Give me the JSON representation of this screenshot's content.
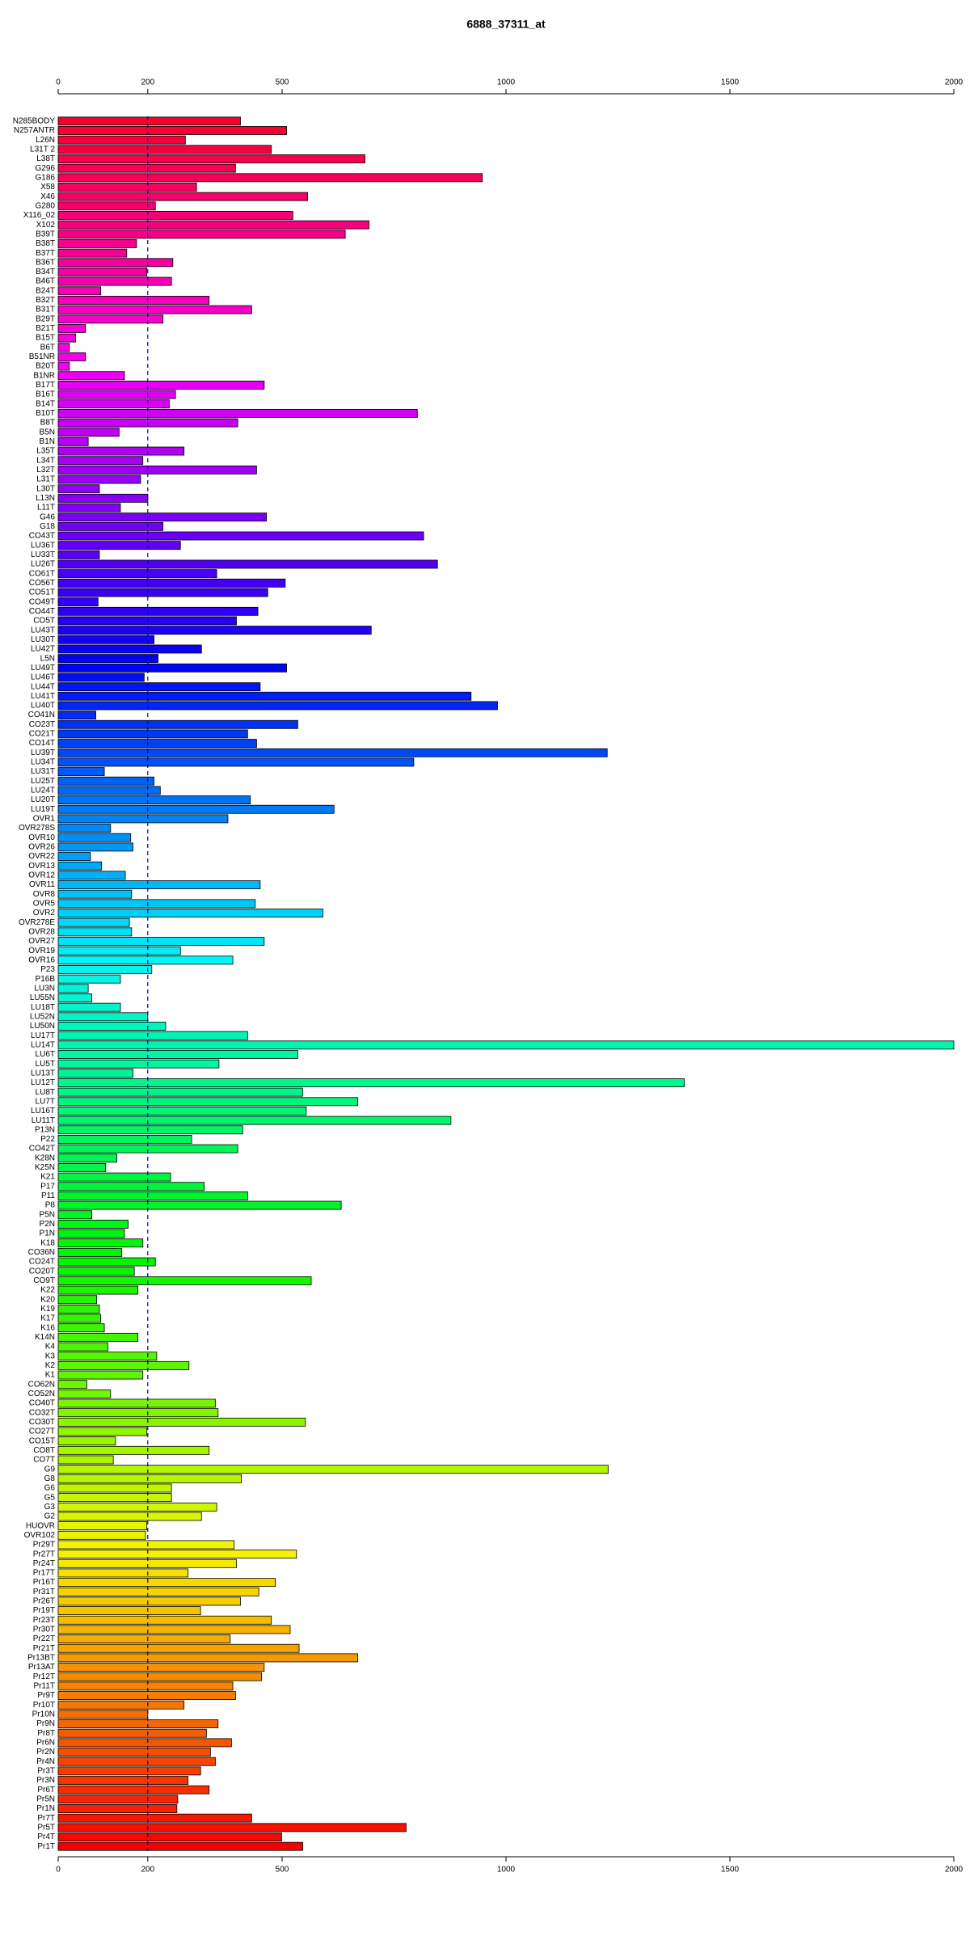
{
  "chart_data": {
    "type": "barh",
    "title": "6888_37311_at",
    "categories": [
      "N285BODY",
      "N257ANTR",
      "L26N",
      "L31T 2",
      "L38T",
      "G296",
      "G186",
      "X58",
      "X46",
      "G280",
      "X116_02",
      "X102",
      "B39T",
      "B38T",
      "B37T",
      "B36T",
      "B34T",
      "B46T",
      "B24T",
      "B32T",
      "B31T",
      "B29T",
      "B21T",
      "B15T",
      "B6T",
      "B51NR",
      "B20T",
      "B1NR",
      "B17T",
      "B16T",
      "B14T",
      "B10T",
      "B8T",
      "B5N",
      "B1N",
      "L35T",
      "L34T",
      "L32T",
      "L31T",
      "L30T",
      "L13N",
      "L11T",
      "G46",
      "G18",
      "CO43T",
      "LU36T",
      "LU33T",
      "LU26T",
      "CO61T",
      "CO56T",
      "CO51T",
      "CO49T",
      "CO44T",
      "CO5T",
      "LU43T",
      "LU30T",
      "LU42T",
      "L5N",
      "LU49T",
      "LU46T",
      "LU44T",
      "LU41T",
      "LU40T",
      "CO41N",
      "CO23T",
      "CO21T",
      "CO14T",
      "LU39T",
      "LU34T",
      "LU31T",
      "LU25T",
      "LU24T",
      "LU20T",
      "LU19T",
      "OVR1",
      "OVR278S",
      "OVR10",
      "OVR26",
      "OVR22",
      "OVR13",
      "OVR12",
      "OVR11",
      "OVR8",
      "OVR5",
      "OVR2",
      "OVR278E",
      "OVR28",
      "OVR27",
      "OVR19",
      "OVR16",
      "P23",
      "P16B",
      "LU3N",
      "LU55N",
      "LU18T",
      "LU52N",
      "LU50N",
      "LU17T",
      "LU14T",
      "LU6T",
      "LU5T",
      "LU13T",
      "LU12T",
      "LU8T",
      "LU7T",
      "LU16T",
      "LU11T",
      "P13N",
      "P22",
      "CO42T",
      "K28N",
      "K25N",
      "K21",
      "P17",
      "P11",
      "P8",
      "P5N",
      "P2N",
      "P1N",
      "K18",
      "CO36N",
      "CO24T",
      "CO20T",
      "CO9T",
      "K22",
      "K20",
      "K19",
      "K17",
      "K16",
      "K14N",
      "K4",
      "K3",
      "K2",
      "K1",
      "CO62N",
      "CO52N",
      "CO40T",
      "CO32T",
      "CO30T",
      "CO27T",
      "CO15T",
      "CO8T",
      "CO7T",
      "G9",
      "G8",
      "G6",
      "G5",
      "G3",
      "G2",
      "HUOVR",
      "OVR102",
      "Pr29T",
      "Pr27T",
      "Pr24T",
      "Pr17T",
      "Pr16T",
      "Pr31T",
      "Pr26T",
      "Pr19T",
      "Pr23T",
      "Pr30T",
      "Pr22T",
      "Pr21T",
      "Pr13BT",
      "Pr13AT",
      "Pr12T",
      "Pr11T",
      "Pr9T",
      "Pr10T",
      "Pr10N",
      "Pr9N",
      "Pr8T",
      "Pr6N",
      "Pr2N",
      "Pr4N",
      "Pr3T",
      "Pr3N",
      "Pr6T",
      "Pr5N",
      "Pr1N",
      "Pr7T",
      "Pr5T",
      "Pr4T",
      "Pr1T"
    ],
    "values": [
      407,
      510,
      284,
      476,
      685,
      396,
      947,
      309,
      557,
      217,
      524,
      694,
      641,
      175,
      153,
      256,
      198,
      253,
      95,
      337,
      432,
      234,
      61,
      39,
      25,
      61,
      25,
      148,
      460,
      262,
      248,
      802,
      401,
      136,
      67,
      281,
      189,
      443,
      184,
      92,
      200,
      139,
      465,
      234,
      816,
      273,
      92,
      847,
      354,
      507,
      468,
      89,
      446,
      398,
      699,
      214,
      320,
      223,
      510,
      192,
      451,
      922,
      981,
      84,
      535,
      423,
      443,
      1226,
      794,
      103,
      214,
      228,
      429,
      616,
      379,
      117,
      162,
      167,
      72,
      97,
      150,
      451,
      164,
      440,
      591,
      159,
      164,
      460,
      273,
      390,
      209,
      139,
      67,
      75,
      139,
      200,
      240,
      423,
      2000,
      535,
      359,
      167,
      1398,
      546,
      669,
      554,
      877,
      412,
      298,
      401,
      131,
      106,
      251,
      326,
      423,
      632,
      75,
      156,
      148,
      189,
      142,
      217,
      170,
      565,
      178,
      86,
      92,
      95,
      103,
      178,
      111,
      220,
      292,
      189,
      64,
      117,
      351,
      357,
      552,
      198,
      128,
      337,
      123,
      1228,
      409,
      253,
      253,
      354,
      320,
      198,
      195,
      393,
      532,
      398,
      290,
      485,
      448,
      407,
      318,
      476,
      518,
      384,
      538,
      669,
      460,
      454,
      390,
      396,
      281,
      200,
      357,
      331,
      387,
      340,
      351,
      318,
      290,
      337,
      267,
      265,
      432,
      777,
      499,
      546
    ],
    "colors": [
      "hsl(350,100%,48%)",
      "hsl(348,100%,48%)",
      "hsl(346,100%,48%)",
      "hsl(344,100%,48%)",
      "hsl(342,100%,48%)",
      "hsl(340,100%,48%)",
      "hsl(339,100%,48%)",
      "hsl(337,100%,48%)",
      "hsl(335,100%,48%)",
      "hsl(333,100%,48%)",
      "hsl(331,100%,48%)",
      "hsl(329,100%,48%)",
      "hsl(327,100%,48%)",
      "hsl(325,100%,48%)",
      "hsl(323,100%,48%)",
      "hsl(321,100%,48%)",
      "hsl(319,100%,48%)",
      "hsl(317,100%,48%)",
      "hsl(316,100%,48%)",
      "hsl(314,100%,48%)",
      "hsl(312,100%,48%)",
      "hsl(310,100%,48%)",
      "hsl(308,100%,48%)",
      "hsl(306,100%,48%)",
      "hsl(304,100%,48%)",
      "hsl(302,100%,48%)",
      "hsl(300,100%,48%)",
      "hsl(298,100%,48%)",
      "hsl(296,100%,48%)",
      "hsl(295,100%,48%)",
      "hsl(293,100%,48%)",
      "hsl(291,100%,48%)",
      "hsl(289,100%,48%)",
      "hsl(287,100%,48%)",
      "hsl(285,100%,48%)",
      "hsl(283,100%,48%)",
      "hsl(281,100%,48%)",
      "hsl(279,100%,48%)",
      "hsl(277,100%,48%)",
      "hsl(275,100%,48%)",
      "hsl(273,100%,48%)",
      "hsl(272,100%,48%)",
      "hsl(270,100%,48%)",
      "hsl(268,100%,48%)",
      "hsl(266,100%,48%)",
      "hsl(264,100%,48%)",
      "hsl(262,100%,48%)",
      "hsl(260,100%,48%)",
      "hsl(258,100%,48%)",
      "hsl(256,100%,48%)",
      "hsl(254,100%,48%)",
      "hsl(252,100%,48%)",
      "hsl(251,100%,48%)",
      "hsl(249,100%,48%)",
      "hsl(247,100%,48%)",
      "hsl(245,100%,48%)",
      "hsl(243,100%,48%)",
      "hsl(241,100%,48%)",
      "hsl(239,100%,48%)",
      "hsl(237,100%,48%)",
      "hsl(235,100%,48%)",
      "hsl(233,100%,48%)",
      "hsl(231,100%,48%)",
      "hsl(229,100%,48%)",
      "hsl(228,100%,48%)",
      "hsl(226,100%,48%)",
      "hsl(224,100%,48%)",
      "hsl(222,100%,48%)",
      "hsl(220,100%,48%)",
      "hsl(218,100%,48%)",
      "hsl(216,100%,48%)",
      "hsl(214,100%,48%)",
      "hsl(212,100%,48%)",
      "hsl(210,100%,48%)",
      "hsl(208,100%,48%)",
      "hsl(207,100%,48%)",
      "hsl(205,100%,48%)",
      "hsl(203,100%,48%)",
      "hsl(201,100%,48%)",
      "hsl(199,100%,48%)",
      "hsl(197,100%,48%)",
      "hsl(195,100%,48%)",
      "hsl(193,100%,48%)",
      "hsl(191,100%,48%)",
      "hsl(189,100%,48%)",
      "hsl(187,100%,48%)",
      "hsl(185,100%,48%)",
      "hsl(184,100%,48%)",
      "hsl(182,100%,48%)",
      "hsl(180,100%,48%)",
      "hsl(178,100%,48%)",
      "hsl(176,100%,48%)",
      "hsl(174,100%,48%)",
      "hsl(172,100%,48%)",
      "hsl(170,100%,48%)",
      "hsl(168,100%,48%)",
      "hsl(166,100%,48%)",
      "hsl(164,100%,48%)",
      "hsl(163,100%,48%)",
      "hsl(161,100%,48%)",
      "hsl(159,100%,48%)",
      "hsl(157,100%,48%)",
      "hsl(155,100%,48%)",
      "hsl(153,100%,48%)",
      "hsl(151,100%,48%)",
      "hsl(149,100%,48%)",
      "hsl(147,100%,48%)",
      "hsl(145,100%,48%)",
      "hsl(143,100%,48%)",
      "hsl(141,100%,48%)",
      "hsl(140,100%,48%)",
      "hsl(138,100%,48%)",
      "hsl(136,100%,48%)",
      "hsl(134,100%,48%)",
      "hsl(132,100%,48%)",
      "hsl(130,100%,48%)",
      "hsl(128,100%,48%)",
      "hsl(126,100%,48%)",
      "hsl(124,100%,48%)",
      "hsl(122,100%,48%)",
      "hsl(120,100%,48%)",
      "hsl(119,100%,48%)",
      "hsl(117,100%,48%)",
      "hsl(115,100%,48%)",
      "hsl(113,100%,48%)",
      "hsl(111,100%,48%)",
      "hsl(109,100%,48%)",
      "hsl(107,100%,48%)",
      "hsl(105,100%,48%)",
      "hsl(103,100%,48%)",
      "hsl(101,100%,48%)",
      "hsl(99,100%,48%)",
      "hsl(97,100%,48%)",
      "hsl(96,100%,48%)",
      "hsl(94,100%,48%)",
      "hsl(92,100%,48%)",
      "hsl(90,100%,48%)",
      "hsl(88,100%,48%)",
      "hsl(86,100%,48%)",
      "hsl(84,100%,48%)",
      "hsl(82,100%,48%)",
      "hsl(80,100%,48%)",
      "hsl(78,100%,48%)",
      "hsl(76,100%,48%)",
      "hsl(75,100%,48%)",
      "hsl(73,100%,48%)",
      "hsl(71,100%,48%)",
      "hsl(69,100%,48%)",
      "hsl(67,100%,48%)",
      "hsl(65,100%,48%)",
      "hsl(63,100%,48%)",
      "hsl(61,100%,48%)",
      "hsl(59,100%,48%)",
      "hsl(57,100%,48%)",
      "hsl(55,100%,48%)",
      "hsl(53,100%,48%)",
      "hsl(52,100%,48%)",
      "hsl(50,100%,48%)",
      "hsl(48,100%,48%)",
      "hsl(46,100%,48%)",
      "hsl(44,100%,48%)",
      "hsl(42,100%,48%)",
      "hsl(40,100%,48%)",
      "hsl(38,100%,48%)",
      "hsl(36,100%,48%)",
      "hsl(34,100%,48%)",
      "hsl(32,100%,48%)",
      "hsl(31,100%,48%)",
      "hsl(29,100%,48%)",
      "hsl(27,100%,48%)",
      "hsl(25,100%,48%)",
      "hsl(23,100%,48%)",
      "hsl(21,100%,48%)",
      "hsl(19,100%,48%)",
      "hsl(17,100%,48%)",
      "hsl(15,100%,48%)",
      "hsl(13,100%,48%)",
      "hsl(11,100%,48%)",
      "hsl(9,100%,48%)",
      "hsl(8,100%,48%)",
      "hsl(6,100%,48%)",
      "hsl(4,100%,48%)",
      "hsl(2,100%,48%)",
      "hsl(0,100%,48%)"
    ],
    "xlim": [
      0,
      2000
    ],
    "xticks": [
      0,
      200,
      500,
      1000,
      1500,
      2000
    ],
    "reference_line": 200,
    "reference_color": "#0000aa"
  }
}
